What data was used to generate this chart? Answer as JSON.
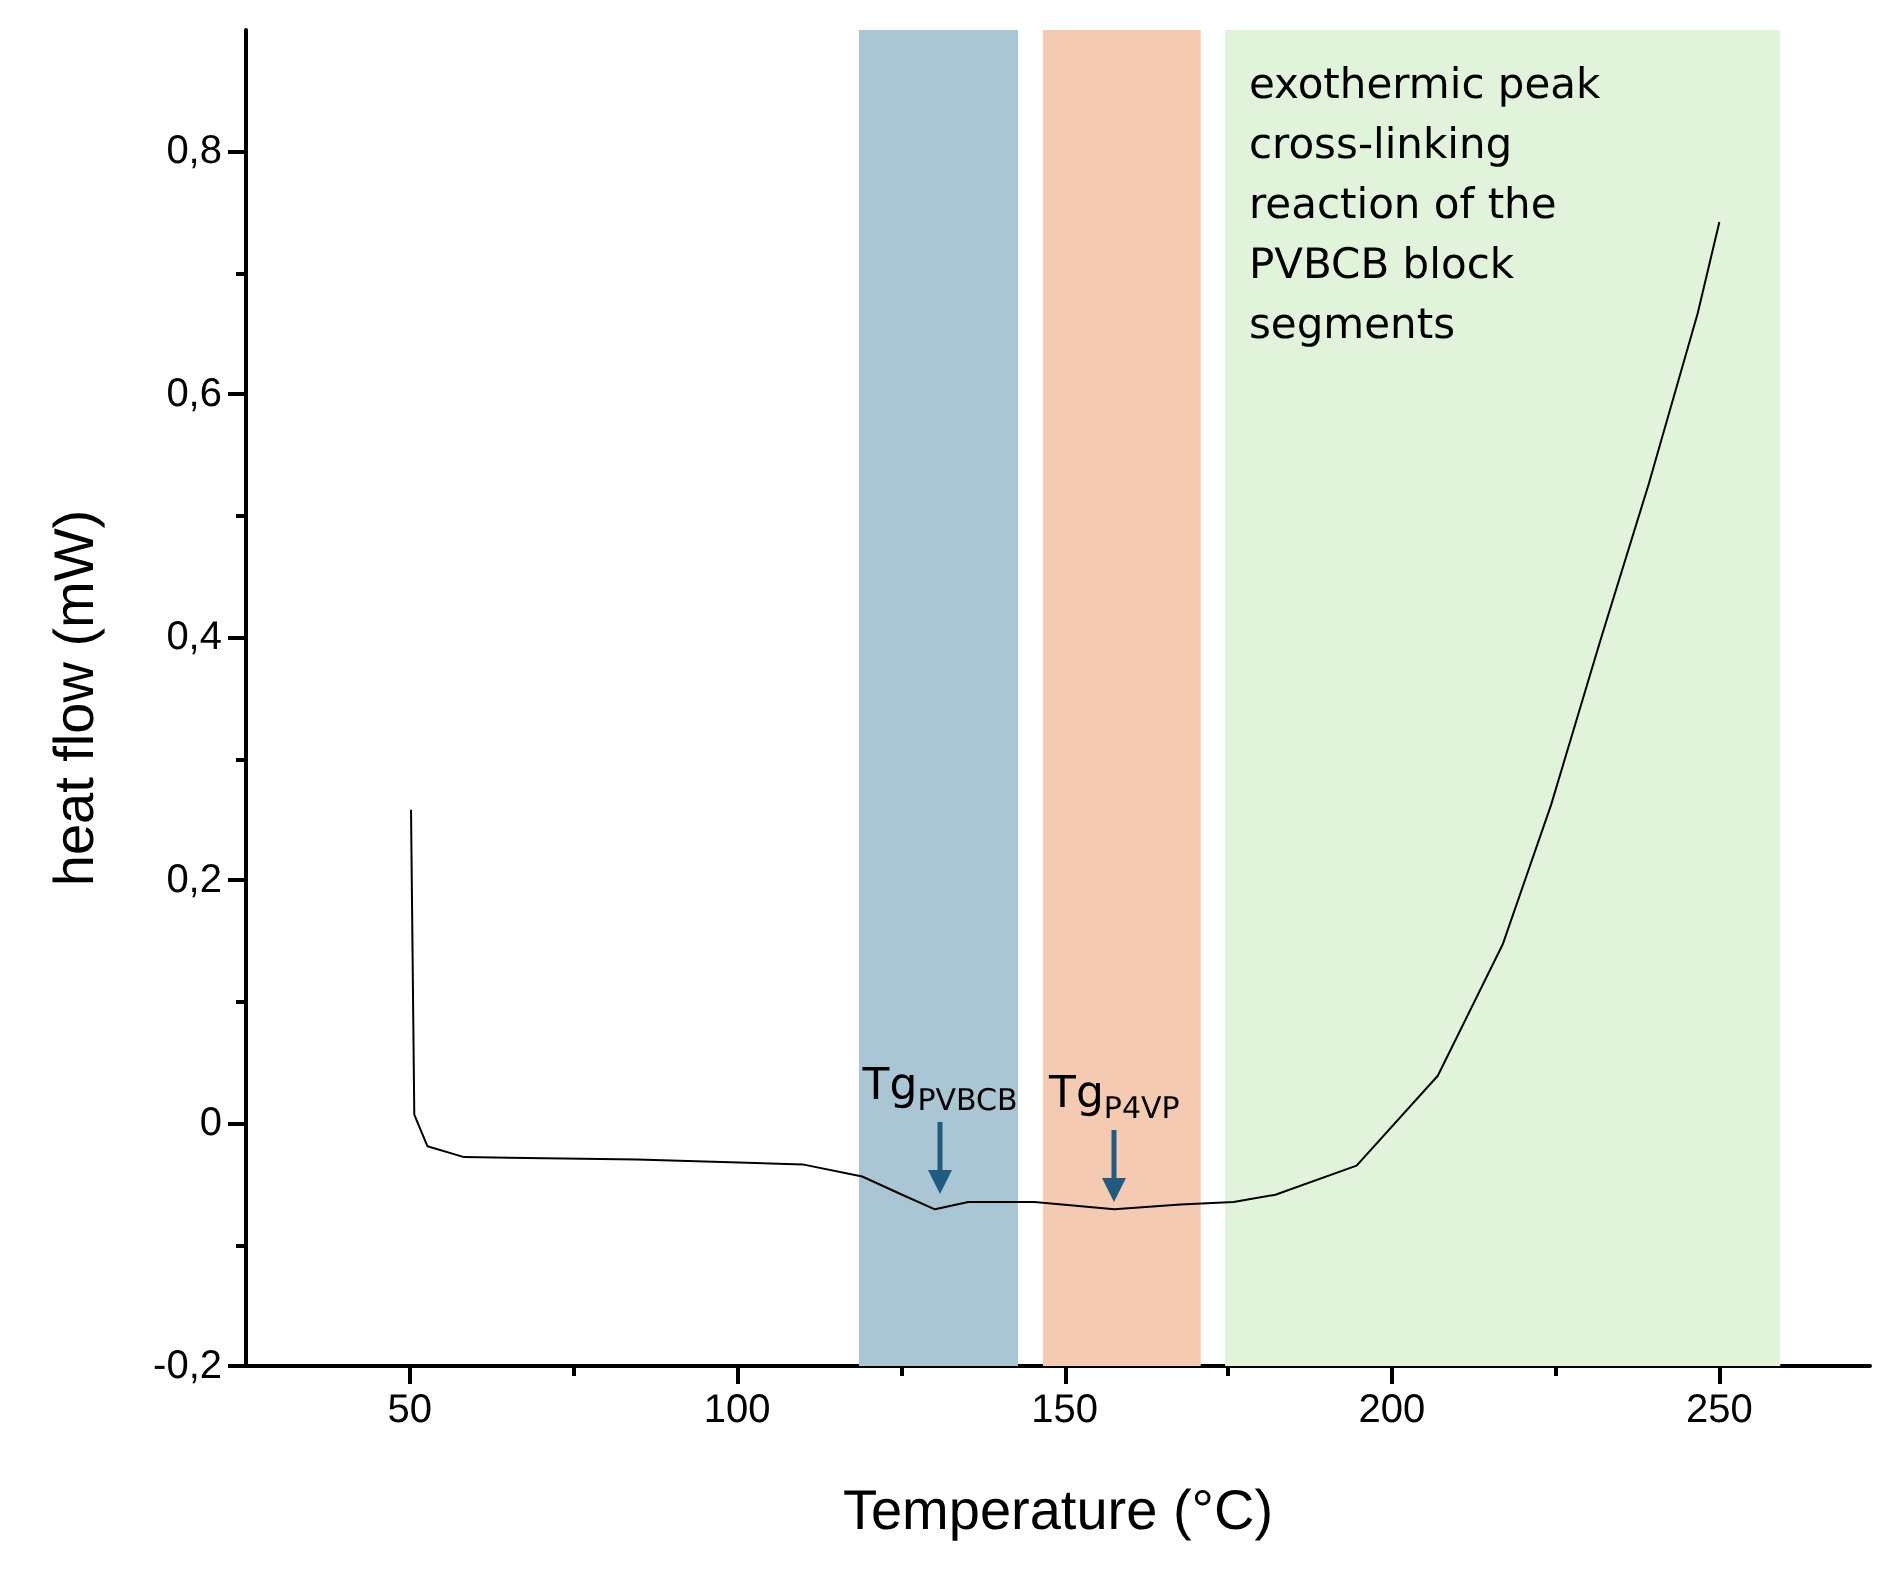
{
  "chart_data": {
    "type": "line",
    "xlabel": "Temperature (°C)",
    "ylabel": "heat flow (mW)",
    "xlim": [
      25,
      273
    ],
    "xticks": [
      50,
      {
        "value": 75,
        "label": null
      },
      100,
      {
        "value": 125,
        "label": null
      },
      150,
      {
        "value": 175,
        "label": null
      },
      200,
      {
        "value": 225,
        "label": null
      },
      250
    ],
    "ylim": [
      -0.2,
      0.9
    ],
    "yticks": [
      {
        "value": -0.2,
        "label": "-0,2"
      },
      {
        "value": -0.1,
        "label": null
      },
      0,
      {
        "value": 0.1,
        "label": null
      },
      {
        "value": 0.2,
        "label": "0,2"
      },
      {
        "value": 0.3,
        "label": null
      },
      {
        "value": 0.4,
        "label": "0,4"
      },
      {
        "value": 0.5,
        "label": null
      },
      {
        "value": 0.6,
        "label": "0,6"
      },
      {
        "value": 0.7,
        "label": null
      },
      {
        "value": 0.8,
        "label": "0,8"
      }
    ],
    "grid": false,
    "marker": "none",
    "line_style": "solid",
    "series": [
      {
        "color": "#000000",
        "x": [
          50.2,
          50.7,
          52.7,
          58.3,
          84.7,
          110,
          119.1,
          125.2,
          130.2,
          135.3,
          145.4,
          157.6,
          167.7,
          175.8,
          182.2,
          194.6,
          207.0,
          216.9,
          224.3,
          231.8,
          239.2,
          246.7,
          250
        ],
        "values": [
          0.258,
          0.007,
          -0.019,
          -0.028,
          -0.03,
          -0.034,
          -0.044,
          -0.059,
          -0.071,
          -0.065,
          -0.065,
          -0.071,
          -0.067,
          -0.065,
          -0.059,
          -0.035,
          0.039,
          0.147,
          0.262,
          0.397,
          0.526,
          0.667,
          0.742
        ]
      }
    ],
    "bands": [
      {
        "axis": "x",
        "from": 118.6,
        "to": 142.9,
        "color": "#aac5d3"
      },
      {
        "axis": "x",
        "from": 146.7,
        "to": 170.8,
        "color": "#f5cab2"
      },
      {
        "axis": "x",
        "from": 174.5,
        "to": 259.3,
        "color": "#e2f3dc",
        "label": "exothermic peak cross-linking reaction of the PVBCB block segments"
      }
    ],
    "annotations": [
      {
        "text": "Tg$_{PVBCB}$",
        "x": 131,
        "y": -0.065
      },
      {
        "text": "Tg$_{P4VP}$",
        "x": 157.6,
        "y": -0.071
      }
    ]
  }
}
